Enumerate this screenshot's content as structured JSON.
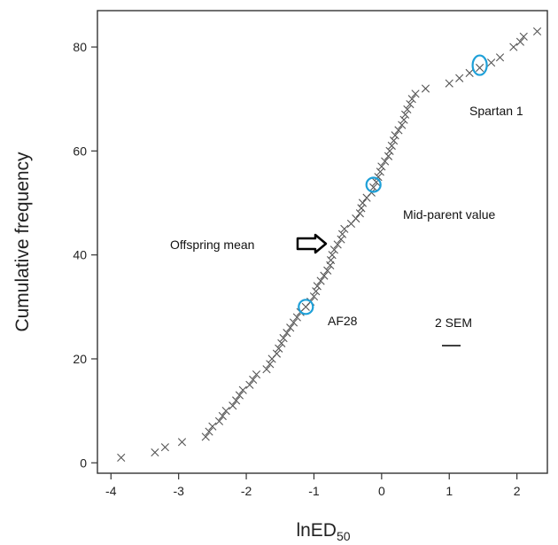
{
  "chart_data": {
    "type": "scatter",
    "xlabel": "lnED",
    "xlabel_sub": "50",
    "ylabel": "Cumulative frequency",
    "xlim": [
      -4.2,
      2.45
    ],
    "ylim": [
      -2,
      87
    ],
    "xticks": [
      -4,
      -3,
      -2,
      -1,
      0,
      1,
      2
    ],
    "yticks": [
      0,
      20,
      40,
      60,
      80
    ],
    "grid": false,
    "legend": "none",
    "marker_color": "#555555",
    "circle_color": "#1ea0d8",
    "points": [
      [
        -3.85,
        1
      ],
      [
        -3.35,
        2
      ],
      [
        -3.2,
        3
      ],
      [
        -2.95,
        4
      ],
      [
        -2.6,
        5
      ],
      [
        -2.55,
        6
      ],
      [
        -2.5,
        7
      ],
      [
        -2.4,
        8
      ],
      [
        -2.35,
        9
      ],
      [
        -2.3,
        10
      ],
      [
        -2.2,
        11
      ],
      [
        -2.15,
        12
      ],
      [
        -2.1,
        13
      ],
      [
        -2.05,
        14
      ],
      [
        -1.95,
        15
      ],
      [
        -1.9,
        16
      ],
      [
        -1.85,
        17
      ],
      [
        -1.7,
        18
      ],
      [
        -1.65,
        19
      ],
      [
        -1.62,
        20
      ],
      [
        -1.55,
        21
      ],
      [
        -1.52,
        22
      ],
      [
        -1.48,
        23
      ],
      [
        -1.45,
        24
      ],
      [
        -1.4,
        25
      ],
      [
        -1.35,
        26
      ],
      [
        -1.3,
        27
      ],
      [
        -1.25,
        28
      ],
      [
        -1.2,
        29
      ],
      [
        -1.12,
        30
      ],
      [
        -1.05,
        31
      ],
      [
        -1.0,
        32
      ],
      [
        -0.97,
        33
      ],
      [
        -0.95,
        34
      ],
      [
        -0.9,
        35
      ],
      [
        -0.85,
        36
      ],
      [
        -0.8,
        37
      ],
      [
        -0.76,
        38
      ],
      [
        -0.75,
        39
      ],
      [
        -0.73,
        40
      ],
      [
        -0.7,
        41
      ],
      [
        -0.65,
        42
      ],
      [
        -0.6,
        43
      ],
      [
        -0.58,
        44
      ],
      [
        -0.55,
        45
      ],
      [
        -0.45,
        46
      ],
      [
        -0.38,
        47
      ],
      [
        -0.32,
        48
      ],
      [
        -0.3,
        49
      ],
      [
        -0.28,
        50
      ],
      [
        -0.22,
        51
      ],
      [
        -0.15,
        52
      ],
      [
        -0.12,
        53
      ],
      [
        -0.08,
        54
      ],
      [
        -0.05,
        55
      ],
      [
        -0.02,
        56
      ],
      [
        0.0,
        57
      ],
      [
        0.05,
        58
      ],
      [
        0.1,
        59
      ],
      [
        0.12,
        60
      ],
      [
        0.15,
        61
      ],
      [
        0.18,
        62
      ],
      [
        0.2,
        63
      ],
      [
        0.25,
        64
      ],
      [
        0.3,
        65
      ],
      [
        0.33,
        66
      ],
      [
        0.35,
        67
      ],
      [
        0.38,
        68
      ],
      [
        0.42,
        69
      ],
      [
        0.45,
        70
      ],
      [
        0.5,
        71
      ],
      [
        0.65,
        72
      ],
      [
        1.0,
        73
      ],
      [
        1.15,
        74
      ],
      [
        1.3,
        75
      ],
      [
        1.45,
        76
      ],
      [
        1.62,
        77
      ],
      [
        1.75,
        78
      ],
      [
        1.95,
        80
      ],
      [
        2.05,
        81
      ],
      [
        2.1,
        82
      ],
      [
        2.3,
        83
      ]
    ],
    "highlighted": [
      {
        "x": -1.12,
        "y": 30,
        "label": "AF28"
      },
      {
        "x": -0.12,
        "y": 53.5,
        "label": "Mid-parent value"
      },
      {
        "x": 1.45,
        "y": 76.5,
        "label": "Spartan 1"
      }
    ],
    "annotations": {
      "offspring_mean": {
        "label": "Offspring mean",
        "x": -0.78,
        "y": 41.5
      },
      "af28": {
        "label": "AF28"
      },
      "mid_parent": {
        "label": "Mid-parent value"
      },
      "spartan": {
        "label": "Spartan 1"
      },
      "sem": {
        "label": "2 SEM"
      }
    }
  }
}
